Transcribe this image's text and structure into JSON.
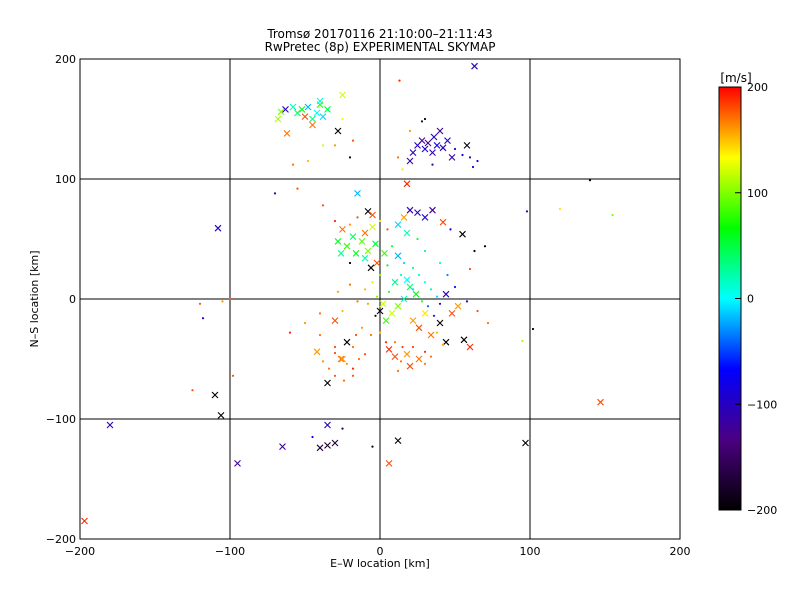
{
  "chart_data": {
    "type": "scatter",
    "title": "Tromsø 20170116 21:10:00–21:11:43",
    "subtitle": "RwPretec (8p) EXPERIMENTAL SKYMAP",
    "xlabel": "E–W location [km]",
    "ylabel": "N–S location [km]",
    "xlim": [
      -200,
      200
    ],
    "ylim": [
      -200,
      200
    ],
    "xticks": [
      -200,
      -100,
      0,
      100,
      200
    ],
    "yticks": [
      -200,
      -100,
      0,
      100,
      200
    ],
    "xtick_labels": [
      "−200",
      "−100",
      "0",
      "100",
      "200"
    ],
    "ytick_labels": [
      "−200",
      "−100",
      "0",
      "100",
      "200"
    ],
    "grid": true,
    "colorbar": {
      "label": "[m/s]",
      "range": [
        -200,
        200
      ],
      "ticks": [
        200,
        100,
        0,
        -100,
        -200
      ],
      "tick_labels": [
        "200",
        "100",
        "0",
        "−100",
        "−200"
      ],
      "stops": [
        "#000000",
        "#4b0082",
        "#0000ff",
        "#00ffff",
        "#00ff00",
        "#ffff00",
        "#ff0000"
      ]
    },
    "markers": {
      "cross": "x",
      "dot": "."
    },
    "points": [
      [
        -66,
        156,
        100,
        "x"
      ],
      [
        -63,
        158,
        -100,
        "x"
      ],
      [
        -58,
        160,
        20,
        "x"
      ],
      [
        -55,
        155,
        40,
        "x"
      ],
      [
        -52,
        158,
        60,
        "x"
      ],
      [
        -48,
        160,
        -20,
        "x"
      ],
      [
        -45,
        150,
        30,
        "x"
      ],
      [
        -42,
        155,
        0,
        "x"
      ],
      [
        -40,
        162,
        80,
        "x"
      ],
      [
        -38,
        152,
        -10,
        "x"
      ],
      [
        -35,
        158,
        50,
        "x"
      ],
      [
        -50,
        152,
        180,
        "x"
      ],
      [
        -45,
        145,
        170,
        "x"
      ],
      [
        -40,
        165,
        10,
        "x"
      ],
      [
        -68,
        150,
        110,
        "x"
      ],
      [
        -62,
        138,
        170,
        "x"
      ],
      [
        -28,
        140,
        -200,
        "x"
      ],
      [
        -25,
        170,
        120,
        "x"
      ],
      [
        -30,
        128,
        160,
        "."
      ],
      [
        -20,
        118,
        -190,
        "."
      ],
      [
        -25,
        150,
        130,
        "."
      ],
      [
        -58,
        112,
        170,
        "."
      ],
      [
        -48,
        115,
        150,
        "."
      ],
      [
        -38,
        128,
        120,
        "."
      ],
      [
        -18,
        132,
        180,
        "."
      ],
      [
        30,
        150,
        -200,
        "."
      ],
      [
        20,
        140,
        160,
        "."
      ],
      [
        12,
        118,
        170,
        "."
      ],
      [
        18,
        96,
        190,
        "x"
      ],
      [
        28,
        148,
        -160,
        "."
      ],
      [
        22,
        122,
        -110,
        "x"
      ],
      [
        25,
        128,
        -100,
        "x"
      ],
      [
        28,
        132,
        -120,
        "x"
      ],
      [
        30,
        125,
        -90,
        "x"
      ],
      [
        32,
        130,
        -130,
        "x"
      ],
      [
        35,
        122,
        -110,
        "x"
      ],
      [
        36,
        135,
        -100,
        "x"
      ],
      [
        38,
        128,
        -80,
        "x"
      ],
      [
        40,
        140,
        -120,
        "x"
      ],
      [
        42,
        126,
        -100,
        "x"
      ],
      [
        45,
        132,
        -90,
        "x"
      ],
      [
        48,
        118,
        -110,
        "x"
      ],
      [
        50,
        125,
        -100,
        "."
      ],
      [
        55,
        120,
        -90,
        "."
      ],
      [
        58,
        128,
        -190,
        "x"
      ],
      [
        60,
        118,
        -100,
        "."
      ],
      [
        62,
        110,
        -70,
        "."
      ],
      [
        65,
        115,
        -80,
        "."
      ],
      [
        20,
        115,
        -110,
        "x"
      ],
      [
        35,
        112,
        -120,
        "."
      ],
      [
        15,
        108,
        140,
        "."
      ],
      [
        63,
        194,
        -100,
        "x"
      ],
      [
        13,
        182,
        190,
        "."
      ],
      [
        140,
        99,
        -190,
        "."
      ],
      [
        -70,
        88,
        -110,
        "."
      ],
      [
        -55,
        92,
        180,
        "."
      ],
      [
        -38,
        78,
        180,
        "."
      ],
      [
        -15,
        88,
        -20,
        "x"
      ],
      [
        -8,
        73,
        -200,
        "x"
      ],
      [
        -5,
        70,
        180,
        "x"
      ],
      [
        -30,
        65,
        190,
        "."
      ],
      [
        -25,
        58,
        170,
        "x"
      ],
      [
        -20,
        62,
        160,
        "."
      ],
      [
        -15,
        68,
        180,
        "."
      ],
      [
        -10,
        55,
        170,
        "x"
      ],
      [
        -5,
        60,
        120,
        "x"
      ],
      [
        0,
        65,
        140,
        "."
      ],
      [
        5,
        58,
        180,
        "."
      ],
      [
        -28,
        48,
        60,
        "x"
      ],
      [
        -22,
        44,
        80,
        "x"
      ],
      [
        -18,
        52,
        40,
        "x"
      ],
      [
        -12,
        48,
        90,
        "x"
      ],
      [
        -8,
        40,
        100,
        "x"
      ],
      [
        -3,
        46,
        50,
        "x"
      ],
      [
        -16,
        38,
        60,
        "x"
      ],
      [
        -10,
        34,
        20,
        "x"
      ],
      [
        -20,
        30,
        -200,
        "."
      ],
      [
        -26,
        38,
        30,
        "x"
      ],
      [
        -6,
        26,
        -200,
        "x"
      ],
      [
        -2,
        30,
        180,
        "x"
      ],
      [
        3,
        38,
        80,
        "x"
      ],
      [
        8,
        44,
        40,
        "."
      ],
      [
        12,
        62,
        -10,
        "x"
      ],
      [
        16,
        68,
        160,
        "x"
      ],
      [
        20,
        74,
        -110,
        "x"
      ],
      [
        25,
        72,
        -100,
        "x"
      ],
      [
        30,
        68,
        -90,
        "x"
      ],
      [
        35,
        74,
        -120,
        "x"
      ],
      [
        42,
        64,
        180,
        "x"
      ],
      [
        47,
        58,
        -70,
        "."
      ],
      [
        12,
        36,
        -20,
        "x"
      ],
      [
        16,
        30,
        -10,
        "."
      ],
      [
        22,
        26,
        30,
        "."
      ],
      [
        26,
        20,
        10,
        "."
      ],
      [
        30,
        14,
        0,
        "."
      ],
      [
        34,
        8,
        20,
        "."
      ],
      [
        38,
        2,
        -10,
        "."
      ],
      [
        20,
        10,
        40,
        "x"
      ],
      [
        24,
        4,
        60,
        "x"
      ],
      [
        28,
        -2,
        80,
        "."
      ],
      [
        16,
        0,
        20,
        "x"
      ],
      [
        12,
        -6,
        100,
        "x"
      ],
      [
        8,
        -12,
        120,
        "x"
      ],
      [
        4,
        -18,
        80,
        "x"
      ],
      [
        0,
        -10,
        -190,
        "x"
      ],
      [
        -3,
        -14,
        -190,
        "."
      ],
      [
        -8,
        -4,
        160,
        "."
      ],
      [
        -15,
        -2,
        170,
        "."
      ],
      [
        -25,
        -10,
        150,
        "."
      ],
      [
        -30,
        -18,
        180,
        "x"
      ],
      [
        -40,
        -12,
        170,
        "."
      ],
      [
        -50,
        -20,
        160,
        "."
      ],
      [
        -60,
        -28,
        190,
        "."
      ],
      [
        22,
        -18,
        160,
        "x"
      ],
      [
        26,
        -24,
        180,
        "x"
      ],
      [
        30,
        -12,
        140,
        "x"
      ],
      [
        34,
        -30,
        170,
        "x"
      ],
      [
        40,
        -20,
        -200,
        "x"
      ],
      [
        44,
        -36,
        -200,
        "x"
      ],
      [
        48,
        -12,
        180,
        "x"
      ],
      [
        52,
        -6,
        160,
        "x"
      ],
      [
        56,
        -34,
        -200,
        "x"
      ],
      [
        60,
        -40,
        190,
        "x"
      ],
      [
        -22,
        -36,
        -200,
        "x"
      ],
      [
        -18,
        -40,
        170,
        "."
      ],
      [
        -30,
        -45,
        180,
        "."
      ],
      [
        -26,
        -50,
        170,
        "x"
      ],
      [
        -22,
        -54,
        160,
        "."
      ],
      [
        -18,
        -58,
        190,
        "."
      ],
      [
        -14,
        -50,
        170,
        "."
      ],
      [
        -10,
        -46,
        180,
        "."
      ],
      [
        -34,
        -58,
        170,
        "."
      ],
      [
        -38,
        -52,
        160,
        "."
      ],
      [
        -30,
        -64,
        180,
        "."
      ],
      [
        -24,
        -68,
        170,
        "."
      ],
      [
        -18,
        -64,
        180,
        "."
      ],
      [
        6,
        -42,
        190,
        "x"
      ],
      [
        10,
        -48,
        180,
        "x"
      ],
      [
        14,
        -52,
        170,
        "."
      ],
      [
        18,
        -46,
        160,
        "x"
      ],
      [
        22,
        -40,
        180,
        "."
      ],
      [
        26,
        -50,
        170,
        "x"
      ],
      [
        30,
        -44,
        190,
        "."
      ],
      [
        34,
        -48,
        170,
        "."
      ],
      [
        15,
        -40,
        180,
        "."
      ],
      [
        10,
        -36,
        170,
        "."
      ],
      [
        -25,
        -50,
        160,
        "x"
      ],
      [
        -30,
        -40,
        180,
        "."
      ],
      [
        -40,
        -30,
        170,
        "."
      ],
      [
        -42,
        -44,
        160,
        "x"
      ],
      [
        -35,
        -70,
        -200,
        "x"
      ],
      [
        -120,
        -4,
        180,
        "."
      ],
      [
        -118,
        -16,
        -100,
        "."
      ],
      [
        -105,
        -2,
        160,
        "."
      ],
      [
        -100,
        0,
        180,
        "."
      ],
      [
        -98,
        -64,
        180,
        "."
      ],
      [
        -125,
        -76,
        180,
        "."
      ],
      [
        -110,
        -80,
        -200,
        "x"
      ],
      [
        -106,
        -97,
        -200,
        "x"
      ],
      [
        -180,
        -105,
        -110,
        "x"
      ],
      [
        -108,
        59,
        -100,
        "x"
      ],
      [
        -95,
        -137,
        -120,
        "x"
      ],
      [
        -65,
        -123,
        -120,
        "x"
      ],
      [
        -40,
        -124,
        -170,
        "x"
      ],
      [
        -35,
        -122,
        -180,
        "x"
      ],
      [
        -30,
        -120,
        -170,
        "x"
      ],
      [
        -25,
        -108,
        -160,
        "."
      ],
      [
        -35,
        -105,
        -100,
        "x"
      ],
      [
        -45,
        -115,
        -80,
        "."
      ],
      [
        12,
        -118,
        -200,
        "x"
      ],
      [
        -5,
        -123,
        -190,
        "."
      ],
      [
        6,
        -137,
        180,
        "x"
      ],
      [
        97,
        -120,
        -200,
        "x"
      ],
      [
        147,
        -86,
        180,
        "x"
      ],
      [
        -197,
        -185,
        190,
        "x"
      ],
      [
        98,
        73,
        -110,
        "."
      ],
      [
        120,
        75,
        140,
        "."
      ],
      [
        155,
        70,
        100,
        "."
      ],
      [
        102,
        -25,
        -200,
        "."
      ],
      [
        95,
        -35,
        110,
        "."
      ],
      [
        63,
        40,
        -200,
        "."
      ],
      [
        70,
        44,
        -200,
        "."
      ],
      [
        55,
        54,
        -200,
        "x"
      ],
      [
        60,
        25,
        180,
        "."
      ],
      [
        65,
        -10,
        180,
        "."
      ],
      [
        72,
        -20,
        170,
        "."
      ],
      [
        58,
        -2,
        -100,
        "."
      ],
      [
        50,
        10,
        -60,
        "."
      ],
      [
        45,
        20,
        -30,
        "."
      ],
      [
        40,
        30,
        10,
        "."
      ],
      [
        30,
        40,
        30,
        "."
      ],
      [
        25,
        50,
        50,
        "."
      ],
      [
        18,
        55,
        20,
        "x"
      ],
      [
        5,
        28,
        60,
        "."
      ],
      [
        0,
        20,
        90,
        "."
      ],
      [
        -5,
        14,
        120,
        "."
      ],
      [
        -10,
        8,
        150,
        "."
      ],
      [
        -20,
        12,
        170,
        "."
      ],
      [
        -28,
        6,
        160,
        "."
      ],
      [
        -2,
        2,
        100,
        "."
      ],
      [
        2,
        -4,
        120,
        "x"
      ],
      [
        6,
        6,
        40,
        "."
      ],
      [
        10,
        14,
        30,
        "x"
      ],
      [
        14,
        20,
        20,
        "."
      ],
      [
        18,
        16,
        0,
        "x"
      ],
      [
        22,
        8,
        -10,
        "."
      ],
      [
        32,
        -6,
        -40,
        "."
      ],
      [
        36,
        -14,
        -60,
        "."
      ],
      [
        40,
        -4,
        -80,
        "."
      ],
      [
        44,
        4,
        -100,
        "x"
      ],
      [
        38,
        -28,
        150,
        "."
      ],
      [
        42,
        -38,
        160,
        "."
      ],
      [
        30,
        -54,
        170,
        "."
      ],
      [
        20,
        -56,
        180,
        "x"
      ],
      [
        12,
        -60,
        170,
        "."
      ],
      [
        -6,
        -30,
        170,
        "."
      ],
      [
        -12,
        -24,
        160,
        "."
      ],
      [
        -16,
        -30,
        180,
        "."
      ],
      [
        0,
        -28,
        150,
        "."
      ],
      [
        4,
        -36,
        190,
        "."
      ]
    ]
  }
}
